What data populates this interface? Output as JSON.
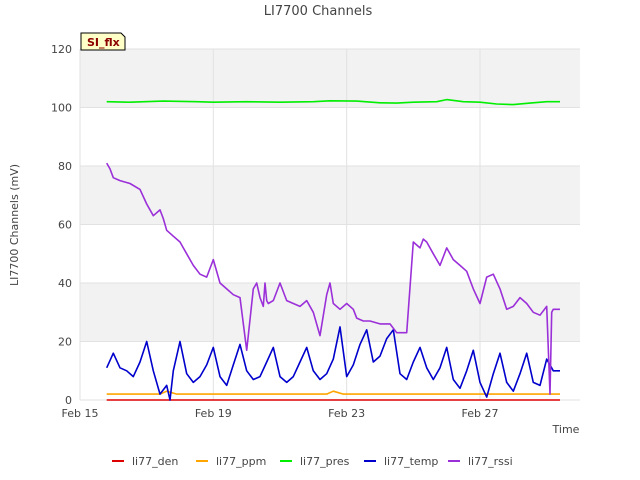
{
  "chart_data": {
    "type": "line",
    "title": "LI7700 Channels",
    "xlabel": "Time",
    "ylabel": "LI7700 Channels (mV)",
    "badge": "SI_flx",
    "xlim": [
      0,
      15
    ],
    "ylim": [
      0,
      120
    ],
    "yticks": [
      0,
      20,
      40,
      60,
      80,
      100,
      120
    ],
    "xticks": [
      {
        "value": 0,
        "label": "Feb 15"
      },
      {
        "value": 4,
        "label": "Feb 19"
      },
      {
        "value": 8,
        "label": "Feb 23"
      },
      {
        "value": 12,
        "label": "Feb 27"
      }
    ],
    "series": [
      {
        "name": "li77_den",
        "color": "#dd0000",
        "x": [
          0.8,
          14.4
        ],
        "y": [
          0,
          0
        ]
      },
      {
        "name": "li77_ppm",
        "color": "#ffa500",
        "x": [
          0.8,
          2.0,
          2.4,
          2.6,
          2.9,
          4.0,
          6.0,
          7.4,
          7.6,
          7.9,
          9.0,
          11.0,
          13.0,
          14.4
        ],
        "y": [
          2,
          2,
          2,
          3,
          2,
          2,
          2,
          2,
          3,
          2,
          2,
          2,
          2,
          2
        ]
      },
      {
        "name": "li77_pres",
        "color": "#00ee00",
        "x": [
          0.8,
          1.5,
          2.5,
          3.5,
          4.0,
          5.0,
          6.0,
          7.0,
          7.5,
          8.3,
          9.0,
          9.5,
          10.0,
          10.7,
          11.0,
          11.5,
          12.0,
          12.5,
          13.0,
          13.5,
          14.0,
          14.4
        ],
        "y": [
          102,
          101.8,
          102.2,
          102,
          101.8,
          102,
          101.8,
          102,
          102.3,
          102.2,
          101.6,
          101.5,
          101.8,
          102,
          102.7,
          102,
          101.8,
          101.2,
          101,
          101.5,
          102,
          102
        ]
      },
      {
        "name": "li77_temp",
        "color": "#0000cc",
        "x": [
          0.8,
          1.0,
          1.2,
          1.4,
          1.6,
          1.8,
          2.0,
          2.2,
          2.4,
          2.6,
          2.7,
          2.8,
          3.0,
          3.2,
          3.4,
          3.6,
          3.8,
          4.0,
          4.2,
          4.4,
          4.6,
          4.8,
          5.0,
          5.2,
          5.4,
          5.6,
          5.8,
          6.0,
          6.2,
          6.4,
          6.6,
          6.8,
          7.0,
          7.2,
          7.4,
          7.6,
          7.8,
          8.0,
          8.2,
          8.4,
          8.6,
          8.8,
          9.0,
          9.2,
          9.4,
          9.6,
          9.8,
          10.0,
          10.2,
          10.4,
          10.6,
          10.8,
          11.0,
          11.2,
          11.4,
          11.6,
          11.8,
          12.0,
          12.2,
          12.4,
          12.6,
          12.8,
          13.0,
          13.2,
          13.4,
          13.6,
          13.8,
          14.0,
          14.2,
          14.4
        ],
        "y": [
          11,
          16,
          11,
          10,
          8,
          13,
          20,
          10,
          2,
          5,
          0,
          10,
          20,
          9,
          6,
          8,
          12,
          18,
          8,
          5,
          12,
          19,
          10,
          7,
          8,
          13,
          18,
          8,
          6,
          8,
          13,
          18,
          10,
          7,
          9,
          14,
          25,
          8,
          12,
          19,
          24,
          13,
          15,
          21,
          24,
          9,
          7,
          13,
          18,
          11,
          7,
          11,
          18,
          7,
          4,
          10,
          17,
          6,
          1,
          9,
          16,
          6,
          3,
          9,
          16,
          6,
          5,
          14,
          10,
          10
        ]
      },
      {
        "name": "li77_rssi",
        "color": "#9b30d9",
        "x": [
          0.8,
          0.9,
          1.0,
          1.2,
          1.5,
          1.8,
          2.0,
          2.2,
          2.4,
          2.5,
          2.6,
          2.8,
          3.0,
          3.1,
          3.2,
          3.4,
          3.6,
          3.8,
          4.0,
          4.2,
          4.4,
          4.6,
          4.8,
          5.0,
          5.2,
          5.3,
          5.4,
          5.5,
          5.55,
          5.6,
          5.65,
          5.8,
          6.0,
          6.2,
          6.4,
          6.6,
          6.8,
          7.0,
          7.2,
          7.4,
          7.5,
          7.6,
          7.8,
          8.0,
          8.2,
          8.3,
          8.5,
          8.7,
          9.0,
          9.3,
          9.5,
          9.8,
          10.0,
          10.1,
          10.2,
          10.3,
          10.4,
          10.6,
          10.8,
          11.0,
          11.2,
          11.4,
          11.6,
          11.8,
          12.0,
          12.2,
          12.4,
          12.6,
          12.8,
          13.0,
          13.2,
          13.4,
          13.6,
          13.8,
          14.0,
          14.1,
          14.15,
          14.2,
          14.25,
          14.3,
          14.4
        ],
        "y": [
          81,
          79,
          76,
          75,
          74,
          72,
          67,
          63,
          65,
          62,
          58,
          56,
          54,
          52,
          50,
          46,
          43,
          42,
          48,
          40,
          38,
          36,
          35,
          17,
          38,
          40,
          35,
          32,
          40,
          34,
          33,
          34,
          40,
          34,
          33,
          32,
          34,
          30,
          22,
          36,
          40,
          33,
          31,
          33,
          31,
          28,
          27,
          27,
          26,
          26,
          23,
          23,
          54,
          53,
          52,
          55,
          54,
          50,
          46,
          52,
          48,
          46,
          44,
          38,
          33,
          42,
          43,
          38,
          31,
          32,
          35,
          33,
          30,
          29,
          32,
          2,
          30,
          31,
          31,
          31,
          31
        ]
      }
    ]
  }
}
